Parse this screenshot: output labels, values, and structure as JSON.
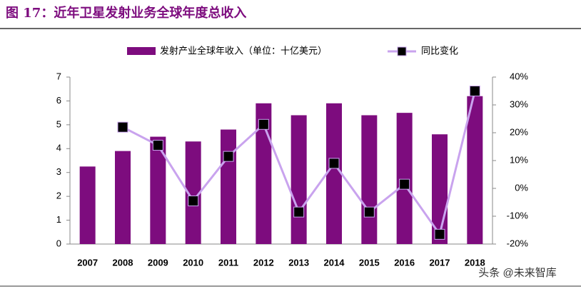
{
  "chart_data": {
    "type": "bar_line",
    "title": "图 17：近年卫星发射业务全球年度总收入",
    "categories": [
      "2007",
      "2008",
      "2009",
      "2010",
      "2011",
      "2012",
      "2013",
      "2014",
      "2015",
      "2016",
      "2017",
      "2018"
    ],
    "series": [
      {
        "name": "发射产业全球年收入（单位：十亿美元）",
        "type": "bar",
        "color": "#7d0c7e",
        "values": [
          3.25,
          3.9,
          4.5,
          4.3,
          4.8,
          5.9,
          5.4,
          5.9,
          5.4,
          5.5,
          4.6,
          6.2
        ]
      },
      {
        "name": "同比变化",
        "type": "line",
        "axis": "y2",
        "color": "#c9a3ee",
        "marker_color": "#000000",
        "values": [
          null,
          22,
          15.5,
          -4.5,
          11.5,
          23,
          -8.5,
          9,
          -8.5,
          1.5,
          -16.5,
          35
        ]
      }
    ],
    "ylim": [
      0,
      7
    ],
    "yticks": [
      0,
      1,
      2,
      3,
      4,
      5,
      6,
      7
    ],
    "y2lim": [
      -20,
      40
    ],
    "y2ticks": [
      {
        "value": -20,
        "label": "-20%"
      },
      {
        "value": -10,
        "label": "-10%"
      },
      {
        "value": 0,
        "label": "0%"
      },
      {
        "value": 10,
        "label": "10%"
      },
      {
        "value": 20,
        "label": "20%"
      },
      {
        "value": 30,
        "label": "30%"
      },
      {
        "value": 40,
        "label": "40%"
      }
    ],
    "legend": "top",
    "watermark": "头条 @未来智库"
  }
}
